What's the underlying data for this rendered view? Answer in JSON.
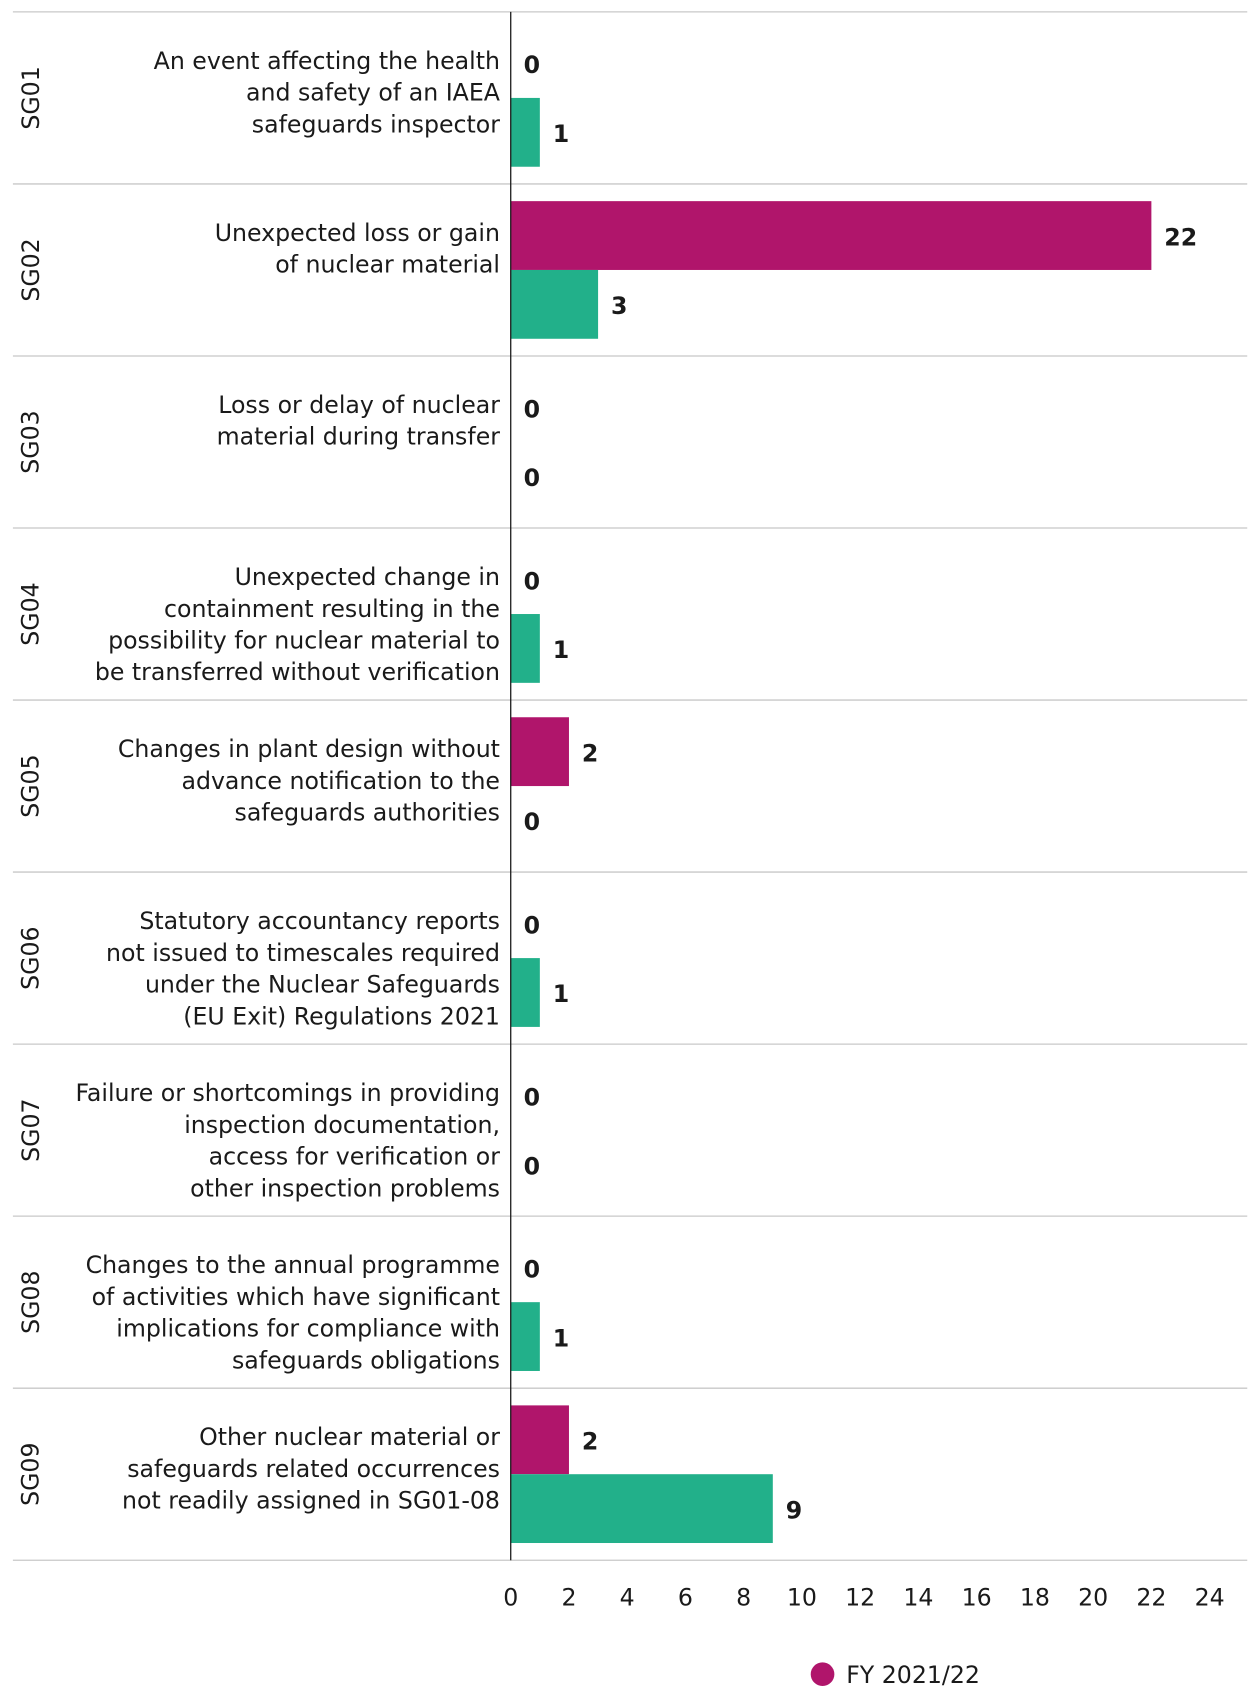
{
  "chart_data": {
    "type": "hbar",
    "codes": [
      "SG01",
      "SG02",
      "SG03",
      "SG04",
      "SG05",
      "SG06",
      "SG07",
      "SG08",
      "SG09"
    ],
    "categories": [
      [
        "An event affecting the health",
        "and safety of an IAEA",
        "safeguards inspector"
      ],
      [
        "Unexpected loss or gain",
        "of nuclear material"
      ],
      [
        "Loss or delay of nuclear",
        "material during transfer"
      ],
      [
        "Unexpected change in",
        "containment resulting in the",
        "possibility for nuclear material to",
        "be transferred without verification"
      ],
      [
        "Changes in plant design without",
        "advance notification to the",
        "safeguards authorities"
      ],
      [
        "Statutory accountancy reports",
        "not issued to timescales required",
        "under the Nuclear Safeguards",
        "(EU Exit) Regulations 2021"
      ],
      [
        "Failure or shortcomings in providing",
        "inspection documentation,",
        "access for verification or",
        "other inspection problems"
      ],
      [
        "Changes to the annual programme",
        "of activities which have significant",
        "implications for compliance with",
        "safeguards obligations"
      ],
      [
        "Other nuclear material or",
        "safeguards related occurrences",
        "not readily assigned in SG01-08"
      ]
    ],
    "series": [
      {
        "name": "FY 2021/22",
        "color": "#b0156b",
        "values": [
          0,
          22,
          0,
          0,
          2,
          0,
          0,
          0,
          2
        ]
      },
      {
        "color": "#22b08a",
        "values": [
          1,
          3,
          0,
          1,
          0,
          1,
          0,
          1,
          9
        ]
      }
    ],
    "xlim": [
      0,
      24
    ],
    "xticks": [
      0,
      2,
      4,
      6,
      8,
      10,
      12,
      14,
      16,
      18,
      20,
      22,
      24
    ]
  }
}
